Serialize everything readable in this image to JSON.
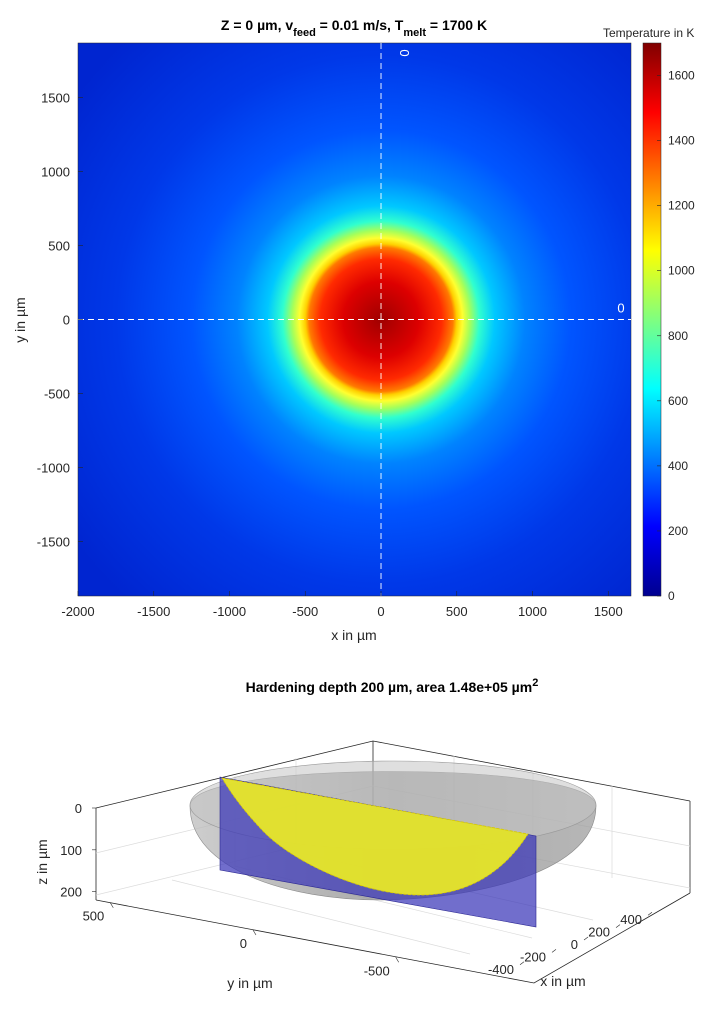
{
  "chart_data": [
    {
      "type": "heatmap",
      "title": {
        "parts": [
          {
            "t": "Z = 0 µm, v"
          },
          {
            "t": "feed",
            "sub": true
          },
          {
            "t": " = 0.01 m/s, T"
          },
          {
            "t": "melt",
            "sub": true
          },
          {
            "t": " = 1700 K"
          }
        ]
      },
      "xlabel": "x in µm",
      "ylabel": "y in µm",
      "xlim": [
        -2000,
        1650
      ],
      "ylim": [
        -1870,
        1870
      ],
      "xticks": [
        -2000,
        -1500,
        -1000,
        -500,
        0,
        500,
        1000,
        1500
      ],
      "yticks": [
        -1500,
        -1000,
        -500,
        0,
        500,
        1000,
        1500
      ],
      "colormap": "jet",
      "colorbar": {
        "label": "Temperature in K",
        "limits": [
          0,
          1700
        ],
        "ticks": [
          0,
          200,
          400,
          600,
          800,
          1000,
          1200,
          1400,
          1600
        ]
      },
      "field": {
        "center": [
          0,
          0
        ],
        "peak_temperature": 1700,
        "melt_pool_radius": 500,
        "background_temperature": 220
      },
      "contour_lines": [
        {
          "orientation": "horizontal",
          "value": 0,
          "label": "0"
        },
        {
          "orientation": "vertical",
          "value": 0,
          "label": "0"
        }
      ]
    },
    {
      "type": "surface3d",
      "title": {
        "parts": [
          {
            "t": "Hardening depth 200 µm, area 1.48e+05 µm"
          },
          {
            "t": "2",
            "sup": true
          }
        ]
      },
      "xlabel": "x in µm",
      "ylabel": "y in µm",
      "zlabel": "z in µm",
      "xlim": [
        -500,
        500
      ],
      "ylim": [
        -550,
        550
      ],
      "zlim": [
        0,
        220
      ],
      "xticks": [
        -400,
        -200,
        0,
        200,
        400
      ],
      "yticks": [
        500,
        0,
        -500
      ],
      "zticks": [
        0,
        100,
        200
      ],
      "hardening_depth": 200,
      "area": 148000,
      "surfaces": [
        {
          "shape": "half-ellipsoid",
          "radius": 500,
          "depth": 200,
          "color": "#9a9a9a",
          "alpha": 0.6
        },
        {
          "shape": "vertical-plane",
          "at": "y = 0",
          "color": "#3a36b8",
          "alpha": 0.75
        },
        {
          "shape": "cross-section-fill",
          "color": "#f2f21a"
        }
      ]
    }
  ]
}
